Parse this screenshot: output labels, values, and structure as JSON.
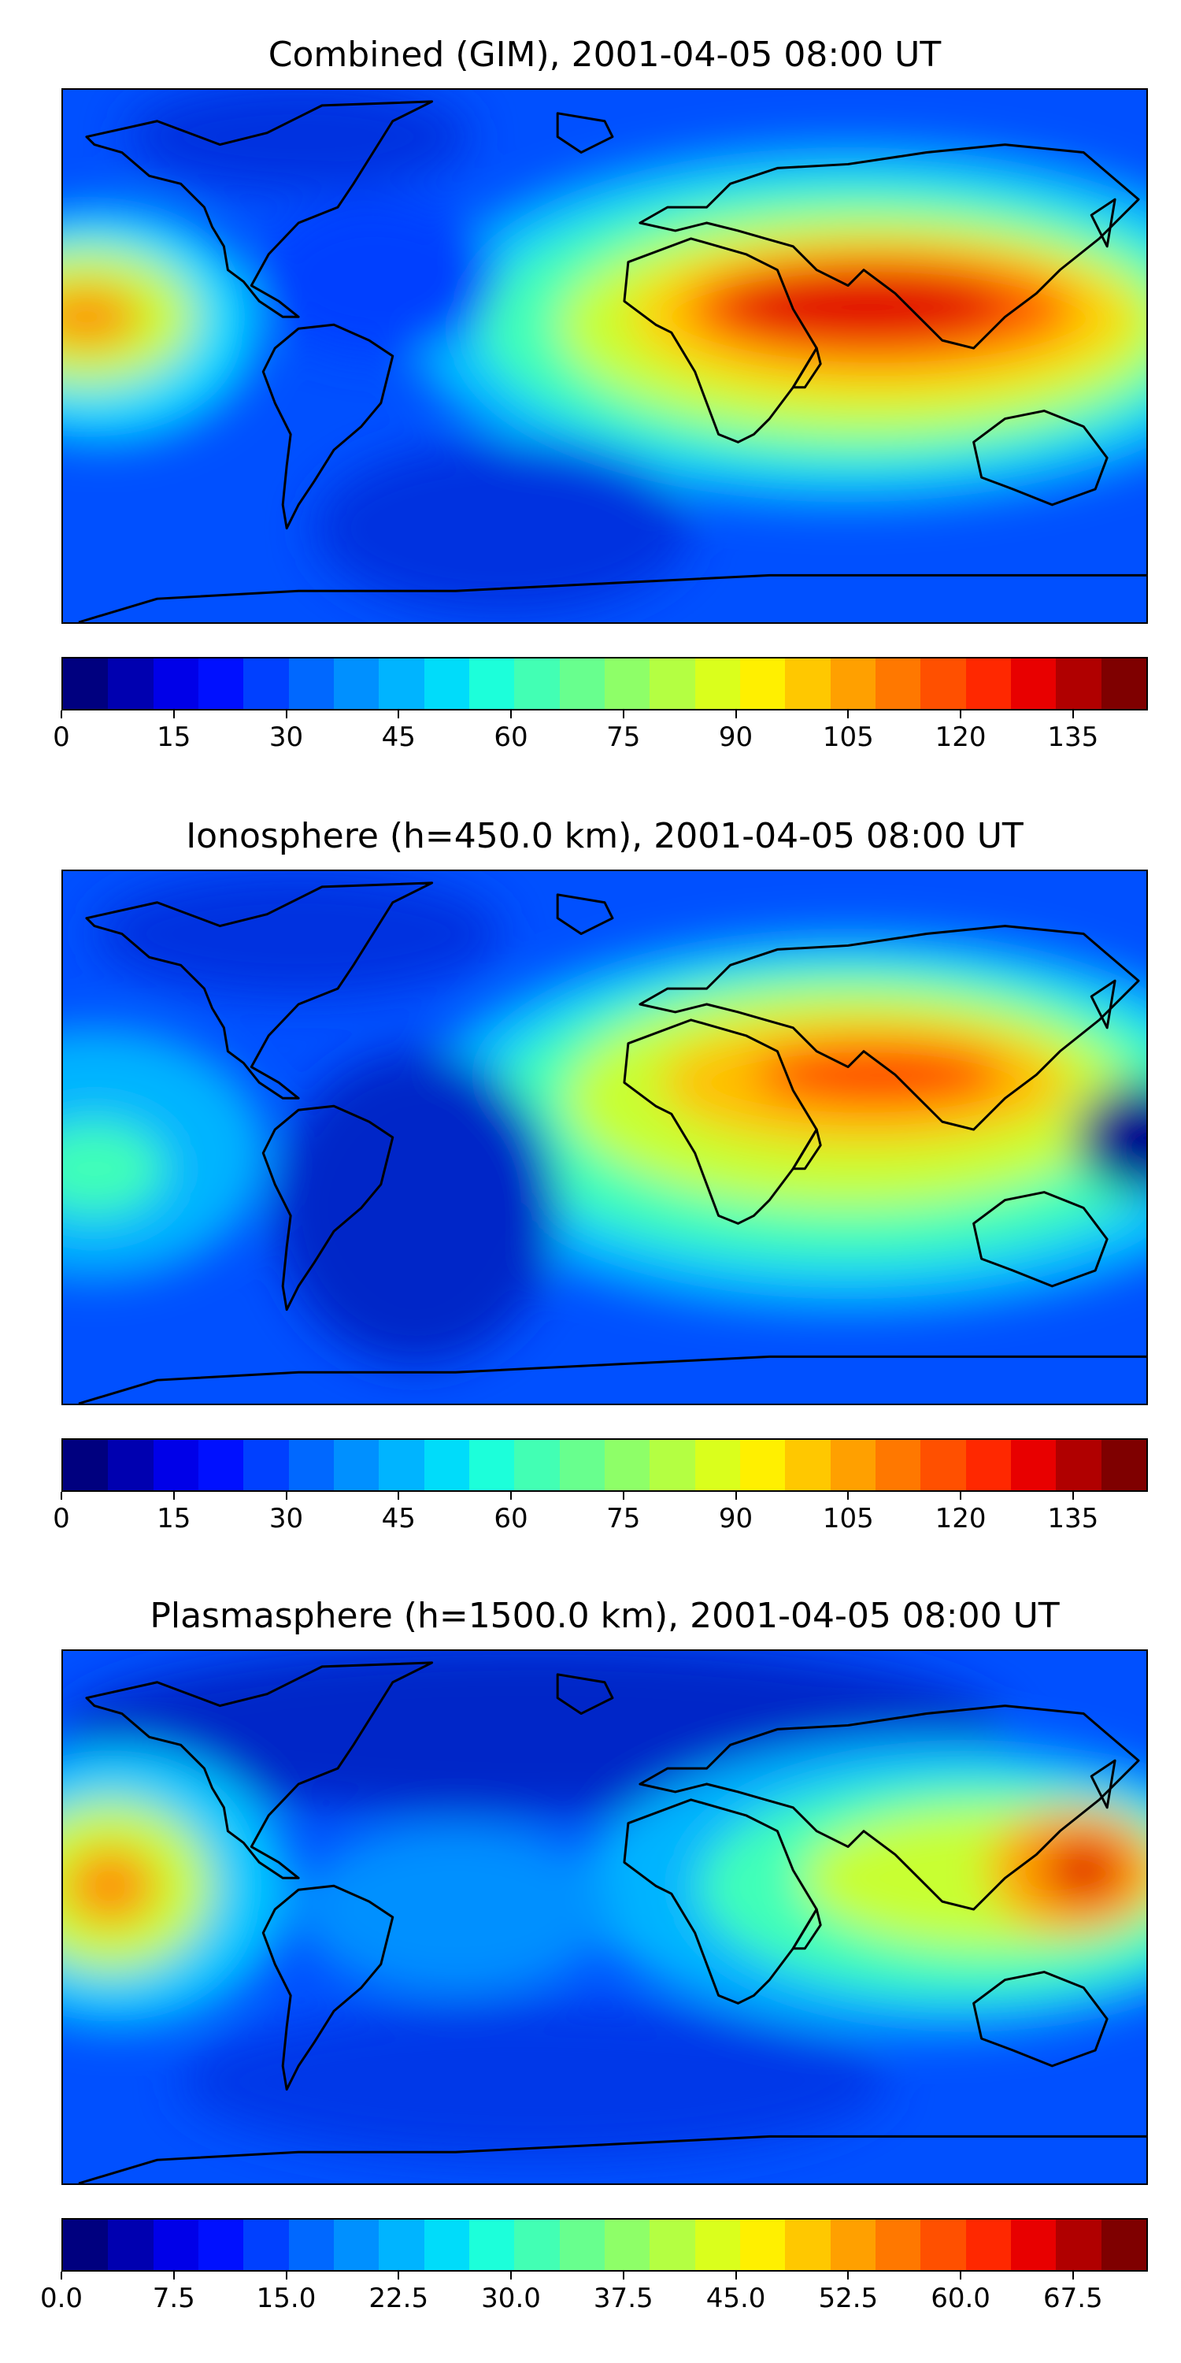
{
  "panels": [
    {
      "title": "Combined (GIM), 2001-04-05 08:00 UT",
      "colorbar": {
        "vmin": 0,
        "vmax": 145,
        "ticks": [
          "0",
          "15",
          "30",
          "45",
          "60",
          "75",
          "90",
          "105",
          "120",
          "135"
        ]
      }
    },
    {
      "title": "Ionosphere  (h=450.0 km), 2001-04-05 08:00 UT",
      "colorbar": {
        "vmin": 0,
        "vmax": 145,
        "ticks": [
          "0",
          "15",
          "30",
          "45",
          "60",
          "75",
          "90",
          "105",
          "120",
          "135"
        ]
      }
    },
    {
      "title": "Plasmasphere (h=1500.0 km), 2001-04-05 08:00 UT",
      "colorbar": {
        "vmin": 0,
        "vmax": 72.5,
        "ticks": [
          "0.0",
          "7.5",
          "15.0",
          "22.5",
          "30.0",
          "37.5",
          "45.0",
          "52.5",
          "60.0",
          "67.5"
        ]
      }
    }
  ],
  "colormap": [
    "#00007f",
    "#0000b0",
    "#0000e8",
    "#0010ff",
    "#0040ff",
    "#0068ff",
    "#0090ff",
    "#00b4ff",
    "#00dcfa",
    "#1cffda",
    "#42ffb4",
    "#68ff8e",
    "#8eff68",
    "#b4ff42",
    "#daff1c",
    "#fff000",
    "#ffc800",
    "#ffa000",
    "#ff7800",
    "#ff5000",
    "#ff2800",
    "#e80000",
    "#b00000",
    "#7f0000"
  ],
  "colors": {
    "coastline": "#000000",
    "background": "#0048ff"
  }
}
